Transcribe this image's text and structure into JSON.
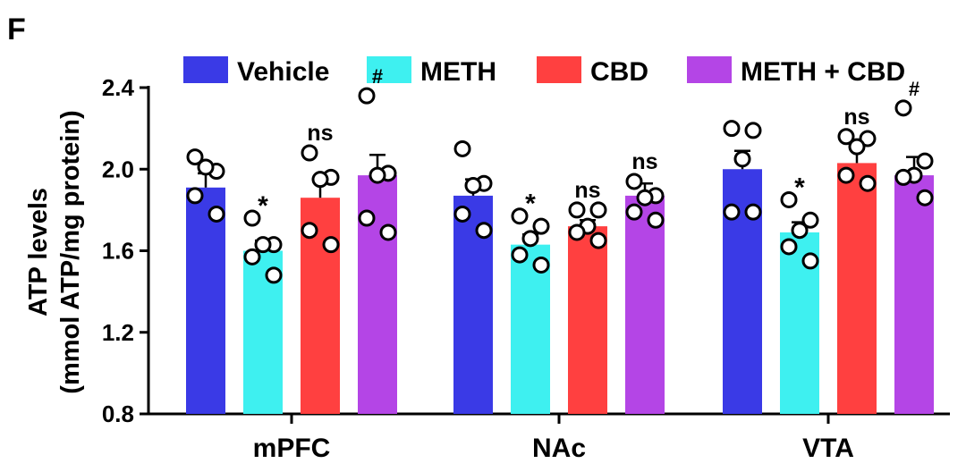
{
  "panel_label": "F",
  "chart_data": {
    "type": "bar",
    "categories": [
      "mPFC",
      "NAc",
      "VTA"
    ],
    "ylabel_line1": "ATP levels",
    "ylabel_line2": "(mmol ATP/mg protein)",
    "ylim": [
      0.8,
      2.4
    ],
    "yticks": [
      "0.8",
      "1.2",
      "1.6",
      "2.0",
      "2.4"
    ],
    "grid": false,
    "legend_position": "top",
    "series": [
      {
        "name": "Vehicle",
        "color": "#3a3ae6",
        "values": [
          1.91,
          1.87,
          2.0
        ],
        "sem": [
          0.07,
          0.08,
          0.09
        ],
        "points": [
          [
            2.06,
            1.99,
            2.01,
            1.87,
            1.78
          ],
          [
            2.1,
            1.93,
            1.92,
            1.78,
            1.7
          ],
          [
            2.2,
            2.19,
            2.05,
            1.79,
            1.79
          ]
        ],
        "significance": [
          "",
          "",
          ""
        ]
      },
      {
        "name": "METH",
        "color": "#3ef0f0",
        "values": [
          1.6,
          1.63,
          1.69
        ],
        "sem": [
          0.05,
          0.05,
          0.05
        ],
        "points": [
          [
            1.76,
            1.63,
            1.63,
            1.57,
            1.48
          ],
          [
            1.77,
            1.72,
            1.66,
            1.58,
            1.53
          ],
          [
            1.85,
            1.75,
            1.7,
            1.62,
            1.55
          ]
        ],
        "significance": [
          "*",
          "*",
          "*"
        ]
      },
      {
        "name": "CBD",
        "color": "#ff4040",
        "values": [
          1.86,
          1.72,
          2.03
        ],
        "sem": [
          0.09,
          0.03,
          0.07
        ],
        "points": [
          [
            2.08,
            1.96,
            1.95,
            1.7,
            1.63
          ],
          [
            1.8,
            1.8,
            1.72,
            1.69,
            1.65
          ],
          [
            2.16,
            2.15,
            2.11,
            1.97,
            1.93
          ]
        ],
        "significance": [
          "ns",
          "ns",
          "ns"
        ]
      },
      {
        "name": "METH + CBD",
        "color": "#b445e6",
        "values": [
          1.97,
          1.87,
          1.97
        ],
        "sem": [
          0.1,
          0.06,
          0.09
        ],
        "points": [
          [
            2.36,
            1.98,
            1.97,
            1.76,
            1.69
          ],
          [
            1.94,
            1.87,
            1.86,
            1.79,
            1.75
          ],
          [
            2.3,
            2.04,
            1.97,
            1.96,
            1.86
          ]
        ],
        "significance": [
          "#",
          "ns",
          "#"
        ]
      }
    ]
  }
}
